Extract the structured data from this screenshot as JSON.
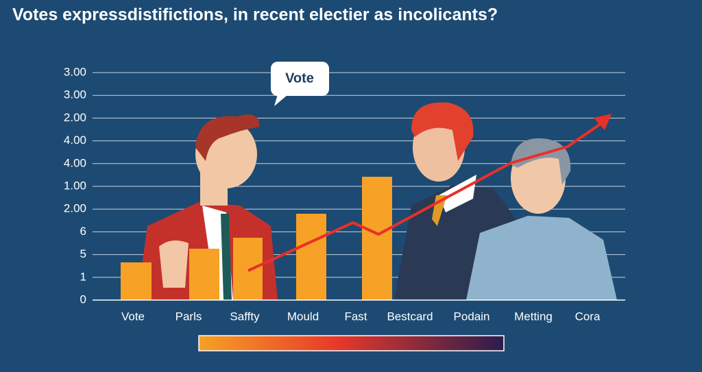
{
  "header": {
    "title": "Votes expressdistifictions, in recent electier as incolicants?"
  },
  "axis": {
    "y_labels": [
      "3.00",
      "3.00",
      "2.00",
      "4.00",
      "4.00",
      "1.00",
      "2.00",
      "6",
      "5",
      "1",
      "0"
    ],
    "x_labels": [
      "Vote",
      "Parls",
      "Saffty",
      "Mould",
      "Fast",
      "Bestcard",
      "Podain",
      "Metting",
      "Cora"
    ]
  },
  "bubble": {
    "text": "Vote"
  }
}
